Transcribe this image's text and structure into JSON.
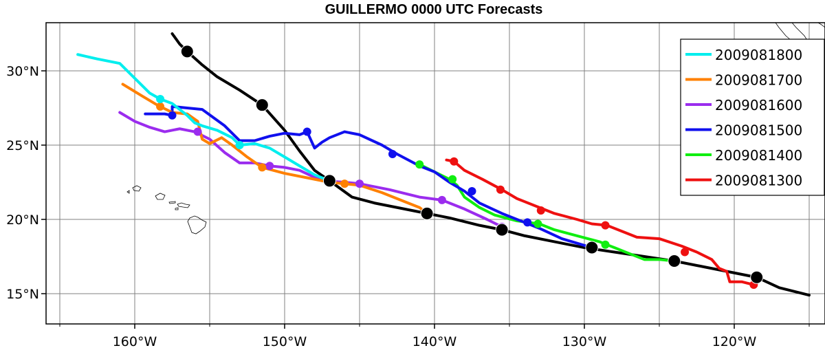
{
  "title": "GUILLERMO 0000 UTC Forecasts",
  "map_extent": {
    "lon_min": -166,
    "lon_max": -115,
    "lat_min": 13,
    "lat_max": 33
  },
  "x_ticks": [
    {
      "lon": -160,
      "label": "160°W"
    },
    {
      "lon": -150,
      "label": "150°W"
    },
    {
      "lon": -140,
      "label": "140°W"
    },
    {
      "lon": -130,
      "label": "130°W"
    },
    {
      "lon": -120,
      "label": "120°W"
    }
  ],
  "y_ticks": [
    {
      "lat": 15,
      "label": "15°N"
    },
    {
      "lat": 20,
      "label": "20°N"
    },
    {
      "lat": 25,
      "label": "25°N"
    },
    {
      "lat": 30,
      "label": "30°N"
    }
  ],
  "legend": {
    "placement": "top-right",
    "entries": [
      {
        "label": "2009081800",
        "color": "#00eeee"
      },
      {
        "label": "2009081700",
        "color": "#ff8000"
      },
      {
        "label": "2009081600",
        "color": "#9b2cee"
      },
      {
        "label": "2009081500",
        "color": "#1010ee"
      },
      {
        "label": "2009081400",
        "color": "#10ee10"
      },
      {
        "label": "2009081300",
        "color": "#ee1010"
      }
    ]
  },
  "chart_data": {
    "type": "line",
    "xlabel": "",
    "ylabel": "",
    "xlim": [
      -166,
      -115
    ],
    "ylim": [
      13,
      33
    ],
    "grid": true,
    "legend_position": "top-right",
    "observed_track": {
      "color": "#000000",
      "points": [
        [
          -115,
          14.9
        ],
        [
          -117,
          15.4
        ],
        [
          -118.5,
          16.1
        ],
        [
          -120,
          16.4
        ],
        [
          -122,
          16.8
        ],
        [
          -124,
          17.2
        ],
        [
          -126,
          17.5
        ],
        [
          -128,
          17.8
        ],
        [
          -130,
          18.1
        ],
        [
          -132,
          18.5
        ],
        [
          -134,
          18.9
        ],
        [
          -135.5,
          19.3
        ],
        [
          -137,
          19.6
        ],
        [
          -139,
          20.1
        ],
        [
          -140.5,
          20.4
        ],
        [
          -142,
          20.7
        ],
        [
          -144,
          21.1
        ],
        [
          -145.5,
          21.5
        ],
        [
          -147,
          22.6
        ],
        [
          -148,
          23.3
        ],
        [
          -149,
          24.6
        ],
        [
          -150,
          26.0
        ],
        [
          -151.5,
          27.7
        ],
        [
          -153,
          28.7
        ],
        [
          -154.5,
          29.6
        ],
        [
          -155.5,
          30.4
        ],
        [
          -156.5,
          31.3
        ],
        [
          -157,
          31.8
        ],
        [
          -157.5,
          32.5
        ]
      ],
      "markers": [
        [
          -118.5,
          16.1
        ],
        [
          -124,
          17.2
        ],
        [
          -129.5,
          18.1
        ],
        [
          -135.5,
          19.3
        ],
        [
          -140.5,
          20.4
        ],
        [
          -147,
          22.6
        ],
        [
          -151.5,
          27.7
        ],
        [
          -156.5,
          31.3
        ]
      ]
    },
    "series": [
      {
        "name": "2009081800",
        "color": "#00eeee",
        "points": [
          [
            -163.8,
            31.1
          ],
          [
            -162.5,
            30.8
          ],
          [
            -161,
            30.5
          ],
          [
            -160,
            29.5
          ],
          [
            -159,
            28.5
          ],
          [
            -158.3,
            28.1
          ],
          [
            -157.5,
            27.8
          ],
          [
            -156.5,
            27.0
          ],
          [
            -156,
            26.5
          ],
          [
            -155.5,
            26.3
          ],
          [
            -154.5,
            26.0
          ],
          [
            -153.5,
            25.5
          ],
          [
            -153,
            25.0
          ],
          [
            -152,
            25.1
          ],
          [
            -151,
            24.8
          ],
          [
            -150,
            24.2
          ],
          [
            -149,
            23.6
          ],
          [
            -148,
            23.0
          ],
          [
            -147,
            22.6
          ]
        ],
        "markers": [
          [
            -158.3,
            28.1
          ],
          [
            -153,
            25.0
          ],
          [
            -147,
            22.6
          ]
        ]
      },
      {
        "name": "2009081700",
        "color": "#ff8000",
        "points": [
          [
            -160.8,
            29.1
          ],
          [
            -159.5,
            28.3
          ],
          [
            -158.5,
            27.7
          ],
          [
            -157.5,
            27.2
          ],
          [
            -156.5,
            27.1
          ],
          [
            -155.8,
            26.6
          ],
          [
            -155.5,
            25.4
          ],
          [
            -155,
            25.1
          ],
          [
            -154.2,
            25.5
          ],
          [
            -153.5,
            25.0
          ],
          [
            -152.5,
            24.2
          ],
          [
            -151.5,
            23.5
          ],
          [
            -150,
            23.1
          ],
          [
            -148.5,
            22.8
          ],
          [
            -147,
            22.5
          ],
          [
            -146,
            22.4
          ],
          [
            -145,
            22.3
          ],
          [
            -143.5,
            21.8
          ],
          [
            -142,
            21.2
          ],
          [
            -141,
            20.8
          ],
          [
            -140.5,
            20.4
          ]
        ],
        "markers": [
          [
            -158.3,
            27.6
          ],
          [
            -151.5,
            23.5
          ],
          [
            -146,
            22.4
          ],
          [
            -140.5,
            20.4
          ]
        ]
      },
      {
        "name": "2009081600",
        "color": "#9b2cee",
        "points": [
          [
            -161,
            27.2
          ],
          [
            -160,
            26.6
          ],
          [
            -159,
            26.2
          ],
          [
            -158,
            25.9
          ],
          [
            -157,
            26.1
          ],
          [
            -156,
            25.9
          ],
          [
            -155,
            25.4
          ],
          [
            -154,
            24.5
          ],
          [
            -153,
            23.8
          ],
          [
            -152,
            23.8
          ],
          [
            -151,
            23.6
          ],
          [
            -150,
            23.5
          ],
          [
            -149,
            23.3
          ],
          [
            -147.5,
            22.6
          ],
          [
            -146,
            22.5
          ],
          [
            -145,
            22.4
          ],
          [
            -143,
            22.0
          ],
          [
            -141,
            21.5
          ],
          [
            -139.5,
            21.3
          ],
          [
            -138,
            20.7
          ],
          [
            -136.5,
            20.0
          ],
          [
            -135.5,
            19.5
          ]
        ],
        "markers": [
          [
            -155.8,
            25.9
          ],
          [
            -151,
            23.6
          ],
          [
            -145,
            22.4
          ],
          [
            -139.5,
            21.3
          ],
          [
            -135.5,
            19.5
          ]
        ]
      },
      {
        "name": "2009081500",
        "color": "#1010ee",
        "points": [
          [
            -159.3,
            27.1
          ],
          [
            -158,
            27.1
          ],
          [
            -157.5,
            27.0
          ],
          [
            -157.5,
            27.6
          ],
          [
            -156.5,
            27.5
          ],
          [
            -155.5,
            27.4
          ],
          [
            -154,
            26.3
          ],
          [
            -153,
            25.3
          ],
          [
            -152,
            25.3
          ],
          [
            -151,
            25.6
          ],
          [
            -150,
            25.8
          ],
          [
            -149,
            25.7
          ],
          [
            -148.5,
            25.9
          ],
          [
            -148,
            24.8
          ],
          [
            -147.5,
            25.2
          ],
          [
            -147,
            25.5
          ],
          [
            -146,
            25.9
          ],
          [
            -145,
            25.7
          ],
          [
            -143.5,
            25.0
          ],
          [
            -142.5,
            24.4
          ],
          [
            -141,
            23.6
          ],
          [
            -140,
            23.2
          ],
          [
            -139,
            22.5
          ],
          [
            -138,
            21.9
          ],
          [
            -137,
            21.1
          ],
          [
            -135.5,
            20.4
          ],
          [
            -134,
            19.8
          ],
          [
            -133,
            19.4
          ],
          [
            -131.5,
            18.7
          ],
          [
            -130.5,
            18.4
          ],
          [
            -129.5,
            18.1
          ]
        ],
        "markers": [
          [
            -157.5,
            27.0
          ],
          [
            -148.5,
            25.9
          ],
          [
            -142.8,
            24.4
          ],
          [
            -137.5,
            21.9
          ],
          [
            -133.8,
            19.8
          ],
          [
            -129.5,
            18.1
          ]
        ]
      },
      {
        "name": "2009081400",
        "color": "#10ee10",
        "points": [
          [
            -141,
            23.7
          ],
          [
            -140,
            23.2
          ],
          [
            -139,
            22.7
          ],
          [
            -138.5,
            22.3
          ],
          [
            -138,
            21.5
          ],
          [
            -137,
            20.8
          ],
          [
            -136,
            20.3
          ],
          [
            -134.5,
            19.9
          ],
          [
            -133,
            19.7
          ],
          [
            -132,
            19.3
          ],
          [
            -130.5,
            18.9
          ],
          [
            -129,
            18.5
          ],
          [
            -128,
            18.1
          ],
          [
            -127,
            17.7
          ],
          [
            -126,
            17.3
          ],
          [
            -125,
            17.3
          ],
          [
            -124,
            17.2
          ]
        ],
        "markers": [
          [
            -141,
            23.7
          ],
          [
            -138.8,
            22.7
          ],
          [
            -133.1,
            19.7
          ],
          [
            -128.6,
            18.3
          ],
          [
            -124,
            17.2
          ]
        ]
      },
      {
        "name": "2009081300",
        "color": "#ee1010",
        "points": [
          [
            -139.2,
            24.0
          ],
          [
            -138.7,
            23.9
          ],
          [
            -138,
            23.3
          ],
          [
            -136.8,
            22.7
          ],
          [
            -135.5,
            22.0
          ],
          [
            -134.5,
            21.4
          ],
          [
            -133,
            20.8
          ],
          [
            -132,
            20.4
          ],
          [
            -130.5,
            20.0
          ],
          [
            -129.5,
            19.7
          ],
          [
            -128.5,
            19.6
          ],
          [
            -127.5,
            19.2
          ],
          [
            -126.5,
            18.8
          ],
          [
            -125,
            18.7
          ],
          [
            -123.5,
            18.2
          ],
          [
            -122.5,
            17.8
          ],
          [
            -121.5,
            17.3
          ],
          [
            -121,
            16.7
          ],
          [
            -120.5,
            16.5
          ],
          [
            -120.3,
            15.8
          ],
          [
            -119.5,
            15.8
          ],
          [
            -118.7,
            15.6
          ]
        ],
        "markers": [
          [
            -138.7,
            23.9
          ],
          [
            -135.6,
            22.0
          ],
          [
            -132.9,
            20.6
          ],
          [
            -128.6,
            19.6
          ],
          [
            -123.3,
            17.8
          ],
          [
            -118.7,
            15.6
          ]
        ]
      }
    ]
  }
}
